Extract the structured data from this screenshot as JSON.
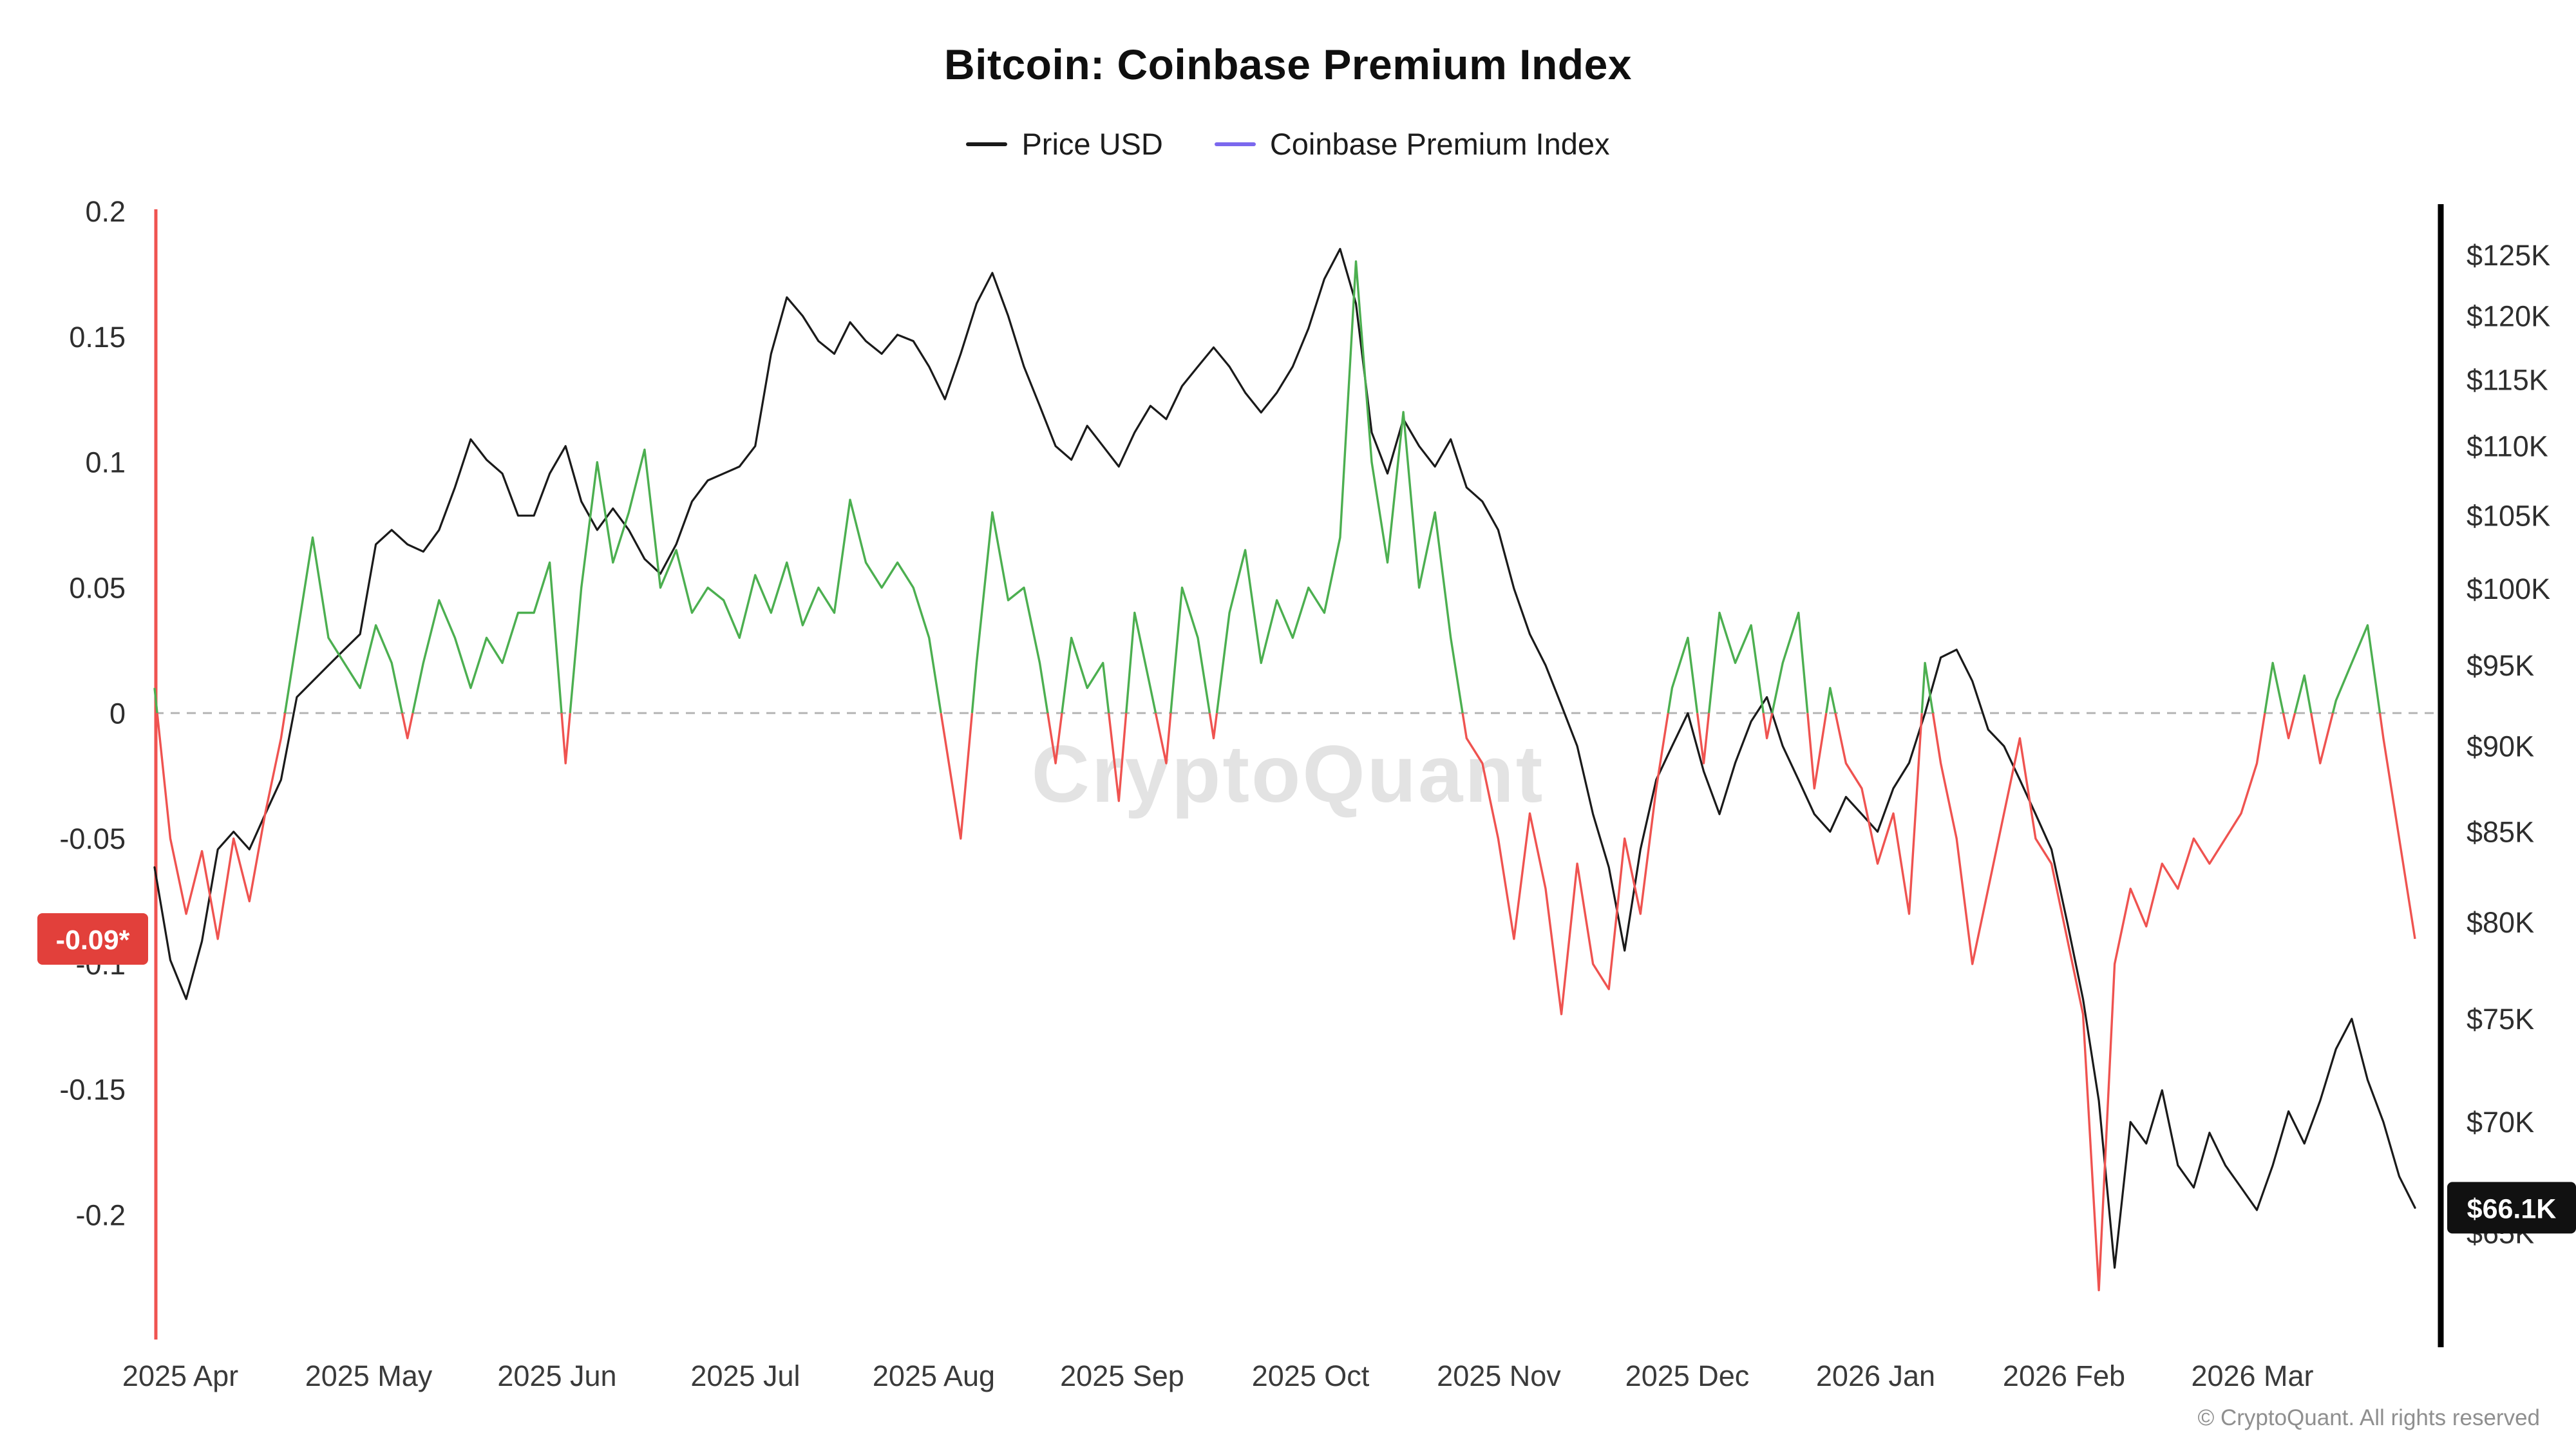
{
  "title": "Bitcoin: Coinbase Premium Index",
  "legend": [
    {
      "label": "Price USD",
      "color": "#1a1a1a"
    },
    {
      "label": "Coinbase Premium Index",
      "color": "#7b68ee"
    }
  ],
  "watermark": "CryptoQuant",
  "footer": "© CryptoQuant. All rights reserved",
  "badges": {
    "premium_last": {
      "text": "-0.09*",
      "value": -0.09,
      "bg": "#e2403b"
    },
    "price_last": {
      "text": "$66.1K",
      "value": 66.1,
      "bg": "#111111"
    }
  },
  "chart_data": {
    "type": "line",
    "title": "Bitcoin: Coinbase Premium Index",
    "xlabel": "",
    "legend_position": "top",
    "grid": "zero-dashed-line-only",
    "x_tick_labels": [
      "2025 Apr",
      "2025 May",
      "2025 Jun",
      "2025 Jul",
      "2025 Aug",
      "2025 Sep",
      "2025 Oct",
      "2025 Nov",
      "2025 Dec",
      "2026 Jan",
      "2026 Feb",
      "2026 Mar"
    ],
    "left_axis": {
      "name": "Coinbase Premium Index",
      "range": [
        -0.25,
        0.2
      ],
      "ticks": [
        {
          "value": 0.2,
          "label": "0.2"
        },
        {
          "value": 0.15,
          "label": "0.15"
        },
        {
          "value": 0.1,
          "label": "0.1"
        },
        {
          "value": 0.05,
          "label": "0.05"
        },
        {
          "value": 0,
          "label": "0"
        },
        {
          "value": -0.05,
          "label": "-0.05"
        },
        {
          "value": -0.1,
          "label": "-0.1"
        },
        {
          "value": -0.15,
          "label": "-0.15"
        },
        {
          "value": -0.2,
          "label": "-0.2"
        }
      ]
    },
    "right_axis": {
      "name": "Price USD",
      "scale": "log",
      "range_k": [
        60.5,
        127
      ],
      "ticks": [
        {
          "value": 125,
          "label": "$125K"
        },
        {
          "value": 120,
          "label": "$120K"
        },
        {
          "value": 115,
          "label": "$115K"
        },
        {
          "value": 110,
          "label": "$110K"
        },
        {
          "value": 105,
          "label": "$105K"
        },
        {
          "value": 100,
          "label": "$100K"
        },
        {
          "value": 95,
          "label": "$95K"
        },
        {
          "value": 90,
          "label": "$90K"
        },
        {
          "value": 85,
          "label": "$85K"
        },
        {
          "value": 80,
          "label": "$80K"
        },
        {
          "value": 75,
          "label": "$75K"
        },
        {
          "value": 70,
          "label": "$70K"
        },
        {
          "value": 65,
          "label": "$65K"
        }
      ]
    },
    "series": [
      {
        "name": "Price USD",
        "axis": "right",
        "units": "USD thousands",
        "color": "#1a1a1a",
        "values": [
          83,
          78,
          76,
          79,
          84,
          85,
          84,
          86,
          88,
          93,
          94,
          95,
          96,
          97,
          103,
          104,
          103,
          102.5,
          104,
          107,
          110.5,
          109,
          108,
          105,
          105,
          108,
          110,
          106,
          104,
          105.5,
          104,
          102,
          101,
          103,
          106,
          107.5,
          108,
          108.5,
          110,
          117,
          121.5,
          120,
          118,
          117,
          119.5,
          118,
          117,
          118.5,
          118,
          116,
          113.5,
          117,
          121,
          123.5,
          120,
          116,
          113,
          110,
          109,
          111.5,
          110,
          108.5,
          111,
          113,
          112,
          114.5,
          116,
          117.5,
          116,
          114,
          112.5,
          114,
          116,
          119,
          123,
          125.5,
          121,
          111,
          108,
          112,
          110,
          108.5,
          110.5,
          107,
          106,
          104,
          100,
          97,
          95,
          92.5,
          90,
          86,
          83,
          78.5,
          84,
          88,
          90,
          92,
          88.5,
          86,
          89,
          91.5,
          93,
          90,
          88,
          86,
          85,
          87,
          86,
          85,
          87.5,
          89,
          92,
          95.5,
          96,
          94,
          91,
          90,
          88,
          86,
          84,
          80,
          76,
          71,
          63.5,
          70,
          69,
          71.5,
          68,
          67,
          69.5,
          68,
          67,
          66,
          68,
          70.5,
          69,
          71,
          73.5,
          75,
          72,
          70,
          67.5,
          66.1
        ]
      },
      {
        "name": "Coinbase Premium Index",
        "axis": "left",
        "color_positive": "#4caf50",
        "color_negative": "#ef5350",
        "values": [
          0.01,
          -0.05,
          -0.08,
          -0.055,
          -0.09,
          -0.05,
          -0.075,
          -0.04,
          -0.01,
          0.03,
          0.07,
          0.03,
          0.02,
          0.01,
          0.035,
          0.02,
          -0.01,
          0.02,
          0.045,
          0.03,
          0.01,
          0.03,
          0.02,
          0.04,
          0.04,
          0.06,
          -0.02,
          0.05,
          0.1,
          0.06,
          0.08,
          0.105,
          0.05,
          0.065,
          0.04,
          0.05,
          0.045,
          0.03,
          0.055,
          0.04,
          0.06,
          0.035,
          0.05,
          0.04,
          0.085,
          0.06,
          0.05,
          0.06,
          0.05,
          0.03,
          -0.01,
          -0.05,
          0.02,
          0.08,
          0.045,
          0.05,
          0.02,
          -0.02,
          0.03,
          0.01,
          0.02,
          -0.035,
          0.04,
          0.01,
          -0.02,
          0.05,
          0.03,
          -0.01,
          0.04,
          0.065,
          0.02,
          0.045,
          0.03,
          0.05,
          0.04,
          0.07,
          0.18,
          0.1,
          0.06,
          0.12,
          0.05,
          0.08,
          0.03,
          -0.01,
          -0.02,
          -0.05,
          -0.09,
          -0.04,
          -0.07,
          -0.12,
          -0.06,
          -0.1,
          -0.11,
          -0.05,
          -0.08,
          -0.03,
          0.01,
          0.03,
          -0.02,
          0.04,
          0.02,
          0.035,
          -0.01,
          0.02,
          0.04,
          -0.03,
          0.01,
          -0.02,
          -0.03,
          -0.06,
          -0.04,
          -0.08,
          0.02,
          -0.02,
          -0.05,
          -0.1,
          -0.07,
          -0.04,
          -0.01,
          -0.05,
          -0.06,
          -0.09,
          -0.12,
          -0.23,
          -0.1,
          -0.07,
          -0.085,
          -0.06,
          -0.07,
          -0.05,
          -0.06,
          -0.05,
          -0.04,
          -0.02,
          0.02,
          -0.01,
          0.015,
          -0.02,
          0.005,
          0.02,
          0.035,
          -0.01,
          -0.05,
          -0.09
        ]
      }
    ],
    "annotations": {
      "zero_line_value": 0,
      "left_edge_marker": "vertical red line at series start",
      "latest_premium": -0.09,
      "latest_price_k": 66.1
    }
  }
}
